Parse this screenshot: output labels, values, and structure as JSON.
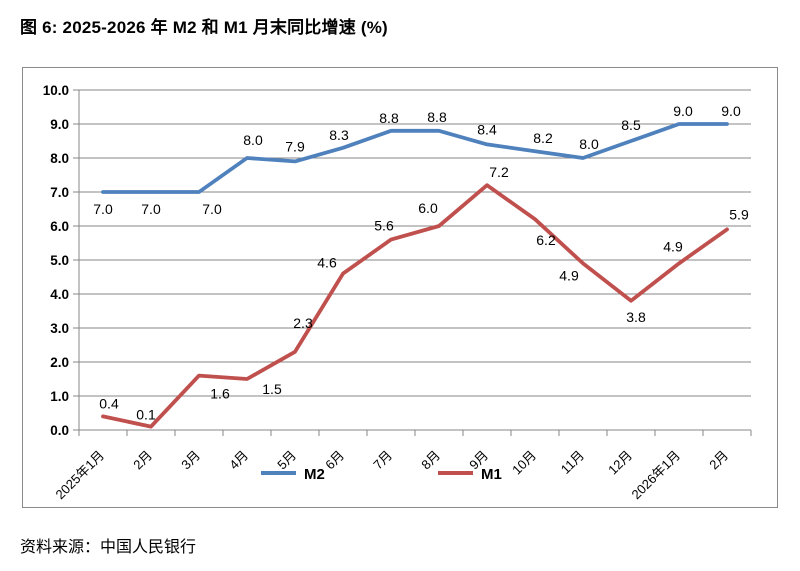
{
  "figure": {
    "title": "图 6: 2025-2026 年 M2 和 M1 月末同比增速 (%)",
    "source": "资料来源：中国人民银行"
  },
  "chart_data": {
    "type": "line",
    "title": "图 6: 2025-2026 年 M2 和 M1 月末同比增速 (%)",
    "categories": [
      "2025年1月",
      "2月",
      "3月",
      "4月",
      "5月",
      "6月",
      "7月",
      "8月",
      "9月",
      "10月",
      "11月",
      "12月",
      "2026年1月",
      "2月"
    ],
    "series": [
      {
        "name": "M2",
        "color": "#4F81BD",
        "values": [
          7.0,
          7.0,
          7.0,
          8.0,
          7.9,
          8.3,
          8.8,
          8.8,
          8.4,
          8.2,
          8.0,
          8.5,
          9.0,
          9.0
        ]
      },
      {
        "name": "M1",
        "color": "#C0504D",
        "values": [
          0.4,
          0.1,
          1.6,
          1.5,
          2.3,
          4.6,
          5.6,
          6.0,
          7.2,
          6.2,
          4.9,
          3.8,
          4.9,
          5.9
        ]
      }
    ],
    "xlabel": "",
    "ylabel": "",
    "ylim": [
      0,
      10
    ],
    "ytick_step": 1,
    "ytick_format": "0.0",
    "grid": true,
    "grid_color": "#878787",
    "axis_color": "#878787",
    "data_labels": true,
    "legend_position": "bottom-inside",
    "legend_labels": [
      "M2",
      "M1"
    ]
  }
}
